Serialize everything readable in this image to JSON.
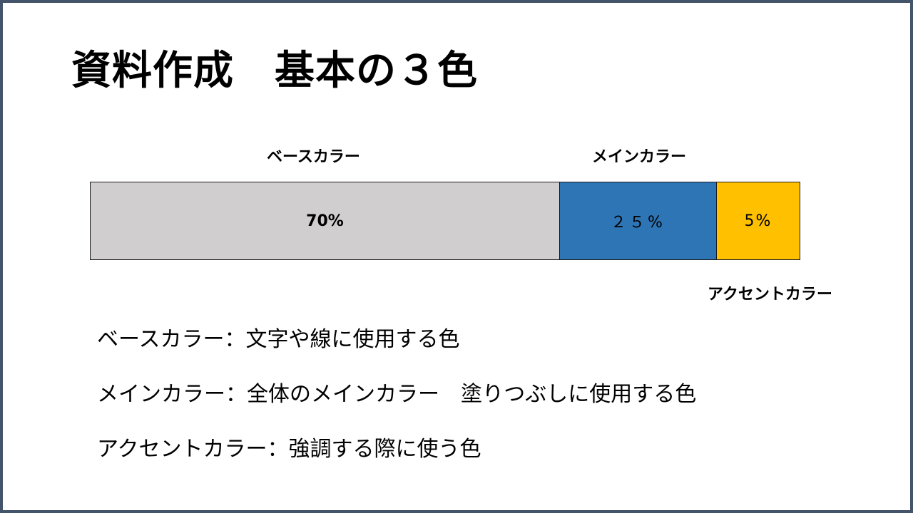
{
  "slide": {
    "title": "資料作成　基本の３色"
  },
  "color_bar": {
    "segments": [
      {
        "name": "ベースカラー",
        "value_label": "70%",
        "share_percent": 70,
        "color": "#d0cece"
      },
      {
        "name": "メインカラー",
        "value_label": "２５%",
        "share_percent": 25,
        "color": "#2e75b6"
      },
      {
        "name": "アクセントカラー",
        "value_label": "5%",
        "share_percent": 5,
        "color": "#ffc000"
      }
    ]
  },
  "descriptions": [
    "ベースカラー：文字や線に使用する色",
    "メインカラー：全体のメインカラー　塗りつぶしに使用する色",
    "アクセントカラー：強調する際に使う色"
  ],
  "colors": {
    "frame_border": "#44546a",
    "text": "#000000"
  }
}
